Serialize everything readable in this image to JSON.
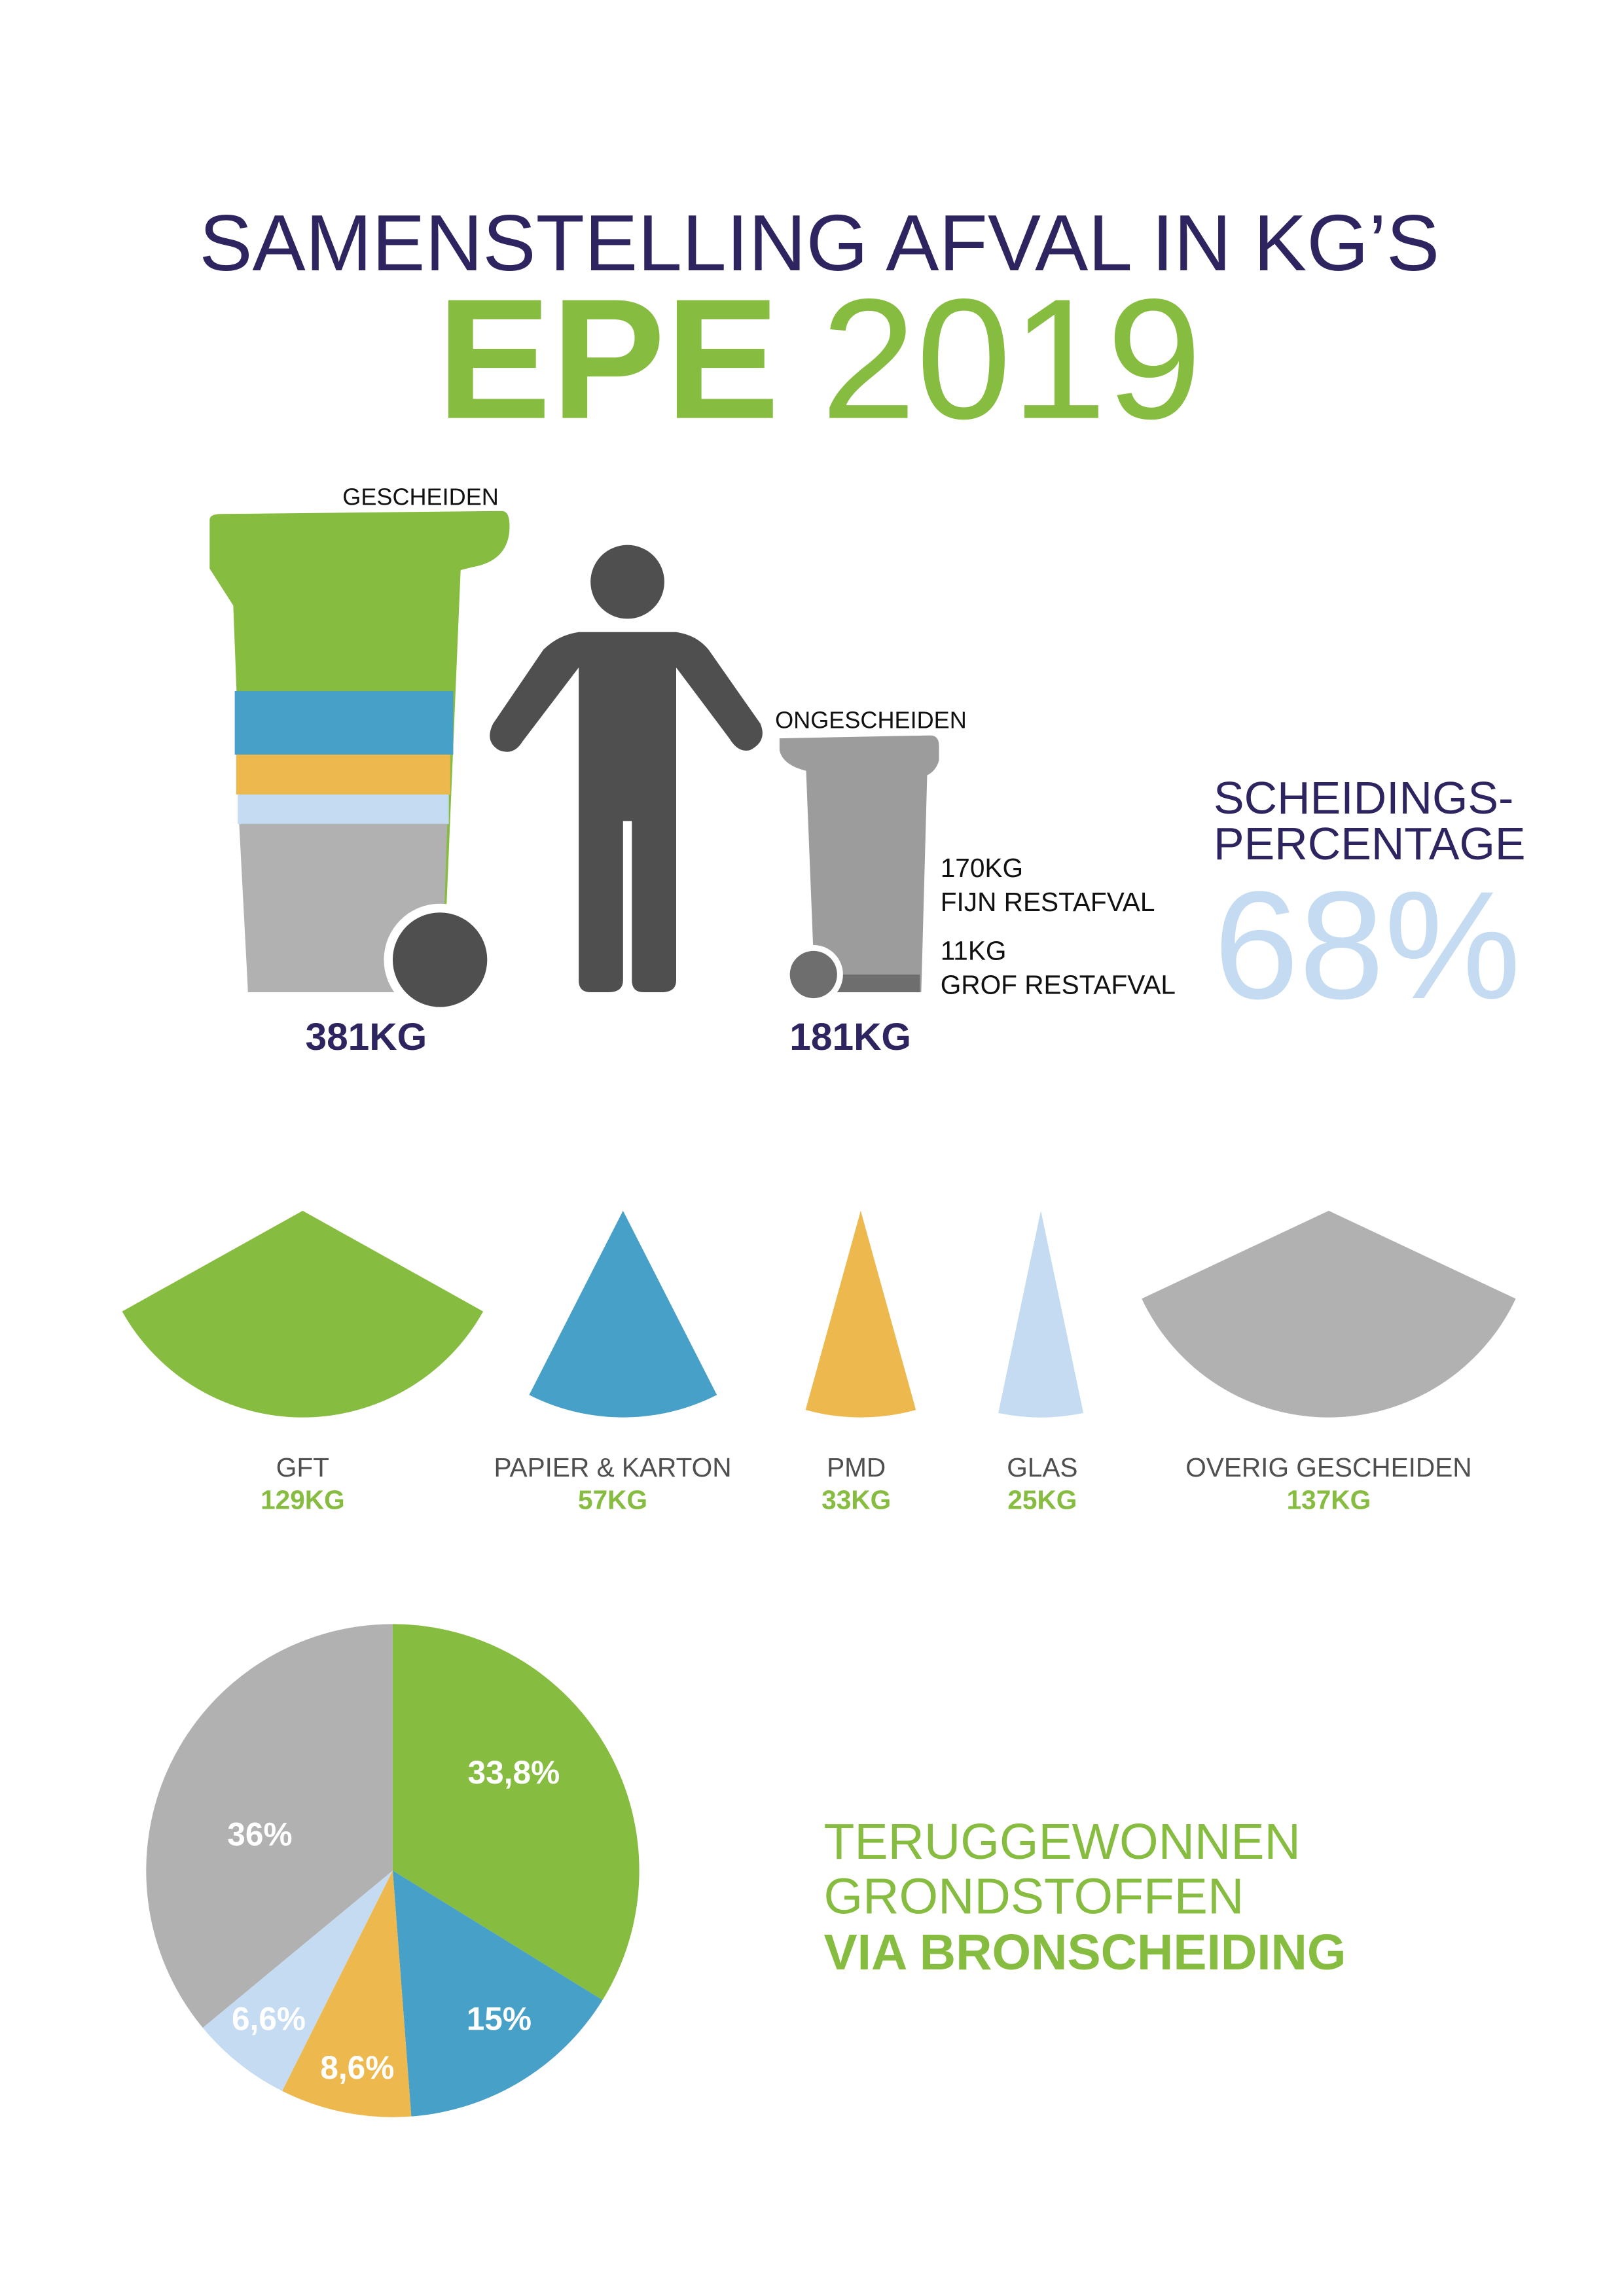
{
  "header": {
    "title_line1": "SAMENSTELLING AFVAL IN KG’S",
    "title_place": "EPE",
    "title_year": "2019"
  },
  "bins": {
    "separated_label": "GESCHEIDEN",
    "separated_total": "381KG",
    "unseparated_label": "ONGESCHEIDEN",
    "unseparated_total": "181KG",
    "fine_amount": "170KG",
    "fine_label": "FIJN RESTAFVAL",
    "coarse_amount": "11KG",
    "coarse_label": "GROF RESTAFVAL"
  },
  "separation_rate": {
    "label_line1": "SCHEIDINGS-",
    "label_line2": "PERCENTAGE",
    "value": "68%"
  },
  "recovered": {
    "line1": "TERUGGEWONNEN",
    "line2": "GRONDSTOFFEN",
    "line3": "VIA BRONSCHEIDING"
  },
  "colors": {
    "navy": "#2e2560",
    "green": "#86bc3f",
    "blue": "#47a0c8",
    "yellow": "#edb94f",
    "lightblue": "#c4dbf2",
    "gray": "#b1b1b1",
    "dark": "#4f4f4f"
  },
  "chart_data": {
    "type": "pie",
    "title": "TERUGGEWONNEN GRONDSTOFFEN VIA BRONSCHEIDING",
    "categories": [
      "GFT",
      "PAPIER & KARTON",
      "PMD",
      "GLAS",
      "OVERIG GESCHEIDEN"
    ],
    "kg_labels": [
      "129KG",
      "57KG",
      "33KG",
      "25KG",
      "137KG"
    ],
    "kg": [
      129,
      57,
      33,
      25,
      137
    ],
    "percent": [
      33.8,
      15,
      8.6,
      6.6,
      36
    ],
    "percent_labels": [
      "33,8%",
      "15%",
      "8,6%",
      "6,6%",
      "36%"
    ],
    "series_colors": [
      "#86bc3f",
      "#47a0c8",
      "#edb94f",
      "#c4dbf2",
      "#b1b1b1"
    ]
  }
}
